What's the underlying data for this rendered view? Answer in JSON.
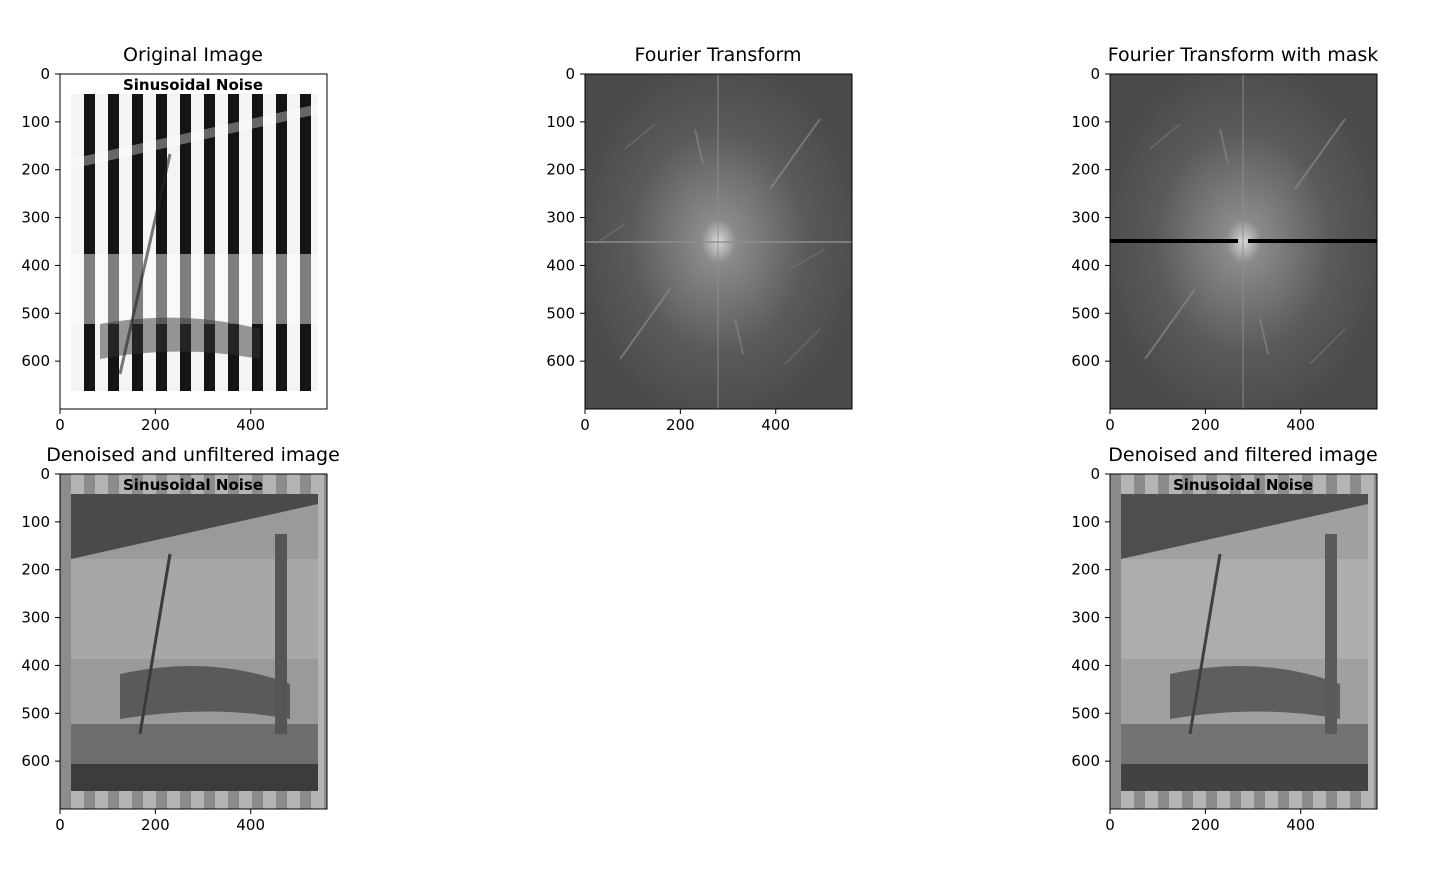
{
  "figure": {
    "panels": [
      {
        "id": "p1",
        "title": "Original Image",
        "kind": "noisy",
        "inner_text": "Sinusoidal Noise",
        "xticks": [
          "0",
          "200",
          "400"
        ],
        "yticks": [
          "0",
          "100",
          "200",
          "300",
          "400",
          "500",
          "600"
        ]
      },
      {
        "id": "p2",
        "title": "Fourier Transform",
        "kind": "fft",
        "inner_text": "",
        "xticks": [
          "0",
          "200",
          "400"
        ],
        "yticks": [
          "0",
          "100",
          "200",
          "300",
          "400",
          "500",
          "600"
        ]
      },
      {
        "id": "p3",
        "title": "Fourier Transform with mask",
        "kind": "fft_mask",
        "inner_text": "",
        "xticks": [
          "0",
          "200",
          "400"
        ],
        "yticks": [
          "0",
          "100",
          "200",
          "300",
          "400",
          "500",
          "600"
        ]
      },
      {
        "id": "p4",
        "title": "Denoised and unfiltered image",
        "kind": "denoised",
        "inner_text": "Sinusoidal Noise",
        "xticks": [
          "0",
          "200",
          "400"
        ],
        "yticks": [
          "0",
          "100",
          "200",
          "300",
          "400",
          "500",
          "600"
        ]
      },
      {
        "id": "p5",
        "title": "Denoised and filtered image",
        "kind": "denoised2",
        "inner_text": "Sinusoidal Noise",
        "xticks": [
          "0",
          "200",
          "400"
        ],
        "yticks": [
          "0",
          "100",
          "200",
          "300",
          "400",
          "500",
          "600"
        ]
      }
    ],
    "axes": {
      "x_range": [
        0,
        560
      ],
      "y_range": [
        0,
        700
      ],
      "xtick_values": [
        0,
        200,
        400
      ],
      "ytick_values": [
        0,
        100,
        200,
        300,
        400,
        500,
        600
      ]
    }
  }
}
